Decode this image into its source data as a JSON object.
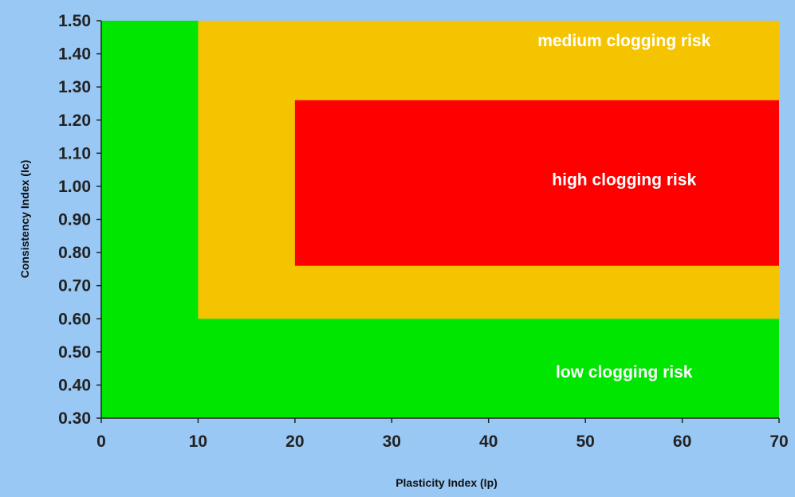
{
  "chart_data": {
    "type": "area",
    "title": "",
    "xlabel": "Plasticity Index (Ip)",
    "ylabel": "Consistency Index (Ic)",
    "xlim": [
      0,
      70
    ],
    "ylim": [
      0.3,
      1.5
    ],
    "x_ticks": [
      "0",
      "10",
      "20",
      "30",
      "40",
      "50",
      "60",
      "70"
    ],
    "y_ticks": [
      "0.30",
      "0.40",
      "0.50",
      "0.60",
      "0.70",
      "0.80",
      "0.90",
      "1.00",
      "1.10",
      "1.20",
      "1.30",
      "1.40",
      "1.50"
    ],
    "grid": false,
    "legend": "none",
    "zones": [
      {
        "label": "low clogging risk",
        "color": "#00e600",
        "x": [
          0,
          70
        ],
        "y": [
          0.3,
          1.5
        ]
      },
      {
        "label": "medium clogging risk",
        "color": "#f5c400",
        "x": [
          10,
          70
        ],
        "y": [
          0.6,
          1.5
        ]
      },
      {
        "label": "high clogging risk",
        "color": "#ff0000",
        "x": [
          20,
          70
        ],
        "y": [
          0.76,
          1.26
        ]
      }
    ],
    "zone_text": [
      {
        "text": "medium clogging risk",
        "x": 54,
        "y": 1.44
      },
      {
        "text": "high clogging risk",
        "x": 54,
        "y": 1.02
      },
      {
        "text": "low clogging risk",
        "x": 54,
        "y": 0.44
      }
    ]
  },
  "colors": {
    "background": "#99c8f5",
    "axis": "#222222"
  }
}
